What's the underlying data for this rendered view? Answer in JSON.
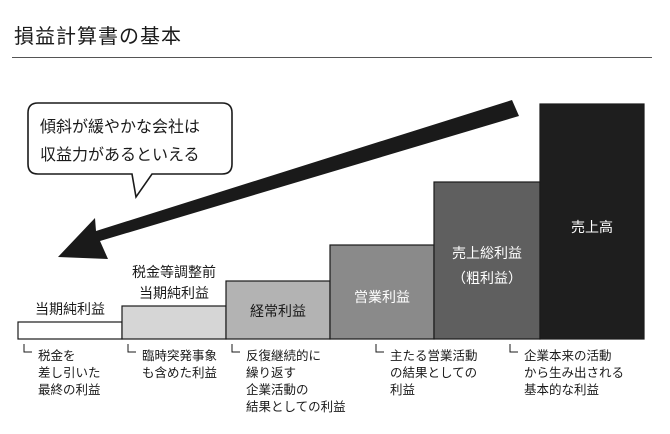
{
  "title": "損益計算書の基本",
  "callout": {
    "lines": [
      "傾斜が緩やかな会社は",
      "収益力があるといえる"
    ]
  },
  "chart_data": {
    "type": "bar",
    "categories": [
      "当期純利益",
      "税金等調整前当期純利益",
      "経常利益",
      "営業利益",
      "売上総利益（粗利益）",
      "売上高"
    ],
    "steps": [
      {
        "label_lines": [
          "当期純利益"
        ],
        "level": 1,
        "fill": "#ffffff"
      },
      {
        "label_lines": [
          "税金等調整前",
          "当期純利益"
        ],
        "level": 2,
        "fill": "#d6d6d6"
      },
      {
        "label_lines": [
          "経常利益"
        ],
        "level": 3,
        "fill": "#b3b3b3"
      },
      {
        "label_lines": [
          "営業利益"
        ],
        "level": 4,
        "fill": "#8a8a8a"
      },
      {
        "label_lines": [
          "売上総利益",
          "（粗利益）"
        ],
        "level": 5,
        "fill": "#5f5f5f"
      },
      {
        "label_lines": [
          "売上高"
        ],
        "level": 6,
        "fill": "#1e1e1e"
      }
    ],
    "notes": [
      [
        "税金を",
        "差し引いた",
        "最終の利益"
      ],
      [
        "臨時突発事象",
        "も含めた利益"
      ],
      [
        "反復継続的に",
        "繰り返す",
        "企業活動の",
        "結果としての利益"
      ],
      [
        "主たる営業活動",
        "の結果としての",
        "利益"
      ],
      [
        "企業本来の活動",
        "から生み出される",
        "基本的な利益"
      ]
    ]
  }
}
